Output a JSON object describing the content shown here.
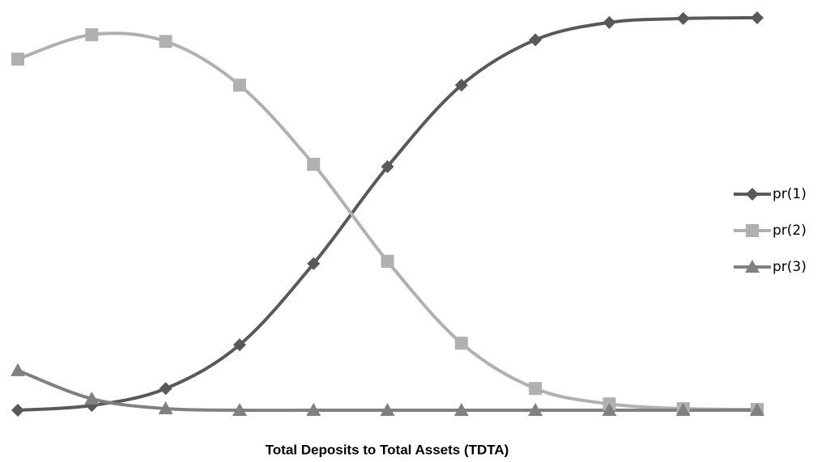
{
  "chart_data": {
    "type": "line",
    "x_label": "Total Deposits to Total Assets (TDTA)",
    "categories": [
      null,
      null,
      null,
      null,
      null,
      null,
      null,
      null,
      null,
      null,
      null
    ],
    "ylim": [
      0,
      1
    ],
    "legend": "right",
    "smooth": true,
    "series": [
      {
        "name": "pr(1)",
        "color": "#595959",
        "marker": "diamond",
        "values": [
          0,
          0.012,
          0.055,
          0.166,
          0.372,
          0.618,
          0.825,
          0.94,
          0.984,
          0.994,
          0.996
        ]
      },
      {
        "name": "pr(2)",
        "color": "#b0b0b0",
        "marker": "square",
        "values": [
          0.891,
          0.953,
          0.936,
          0.825,
          0.624,
          0.378,
          0.17,
          0.055,
          0.016,
          0.004,
          0.002
        ]
      },
      {
        "name": "pr(3)",
        "color": "#808080",
        "marker": "triangle",
        "values": [
          0.101,
          0.029,
          0.004,
          0,
          0,
          0,
          0,
          0,
          0,
          0,
          0
        ]
      }
    ]
  }
}
